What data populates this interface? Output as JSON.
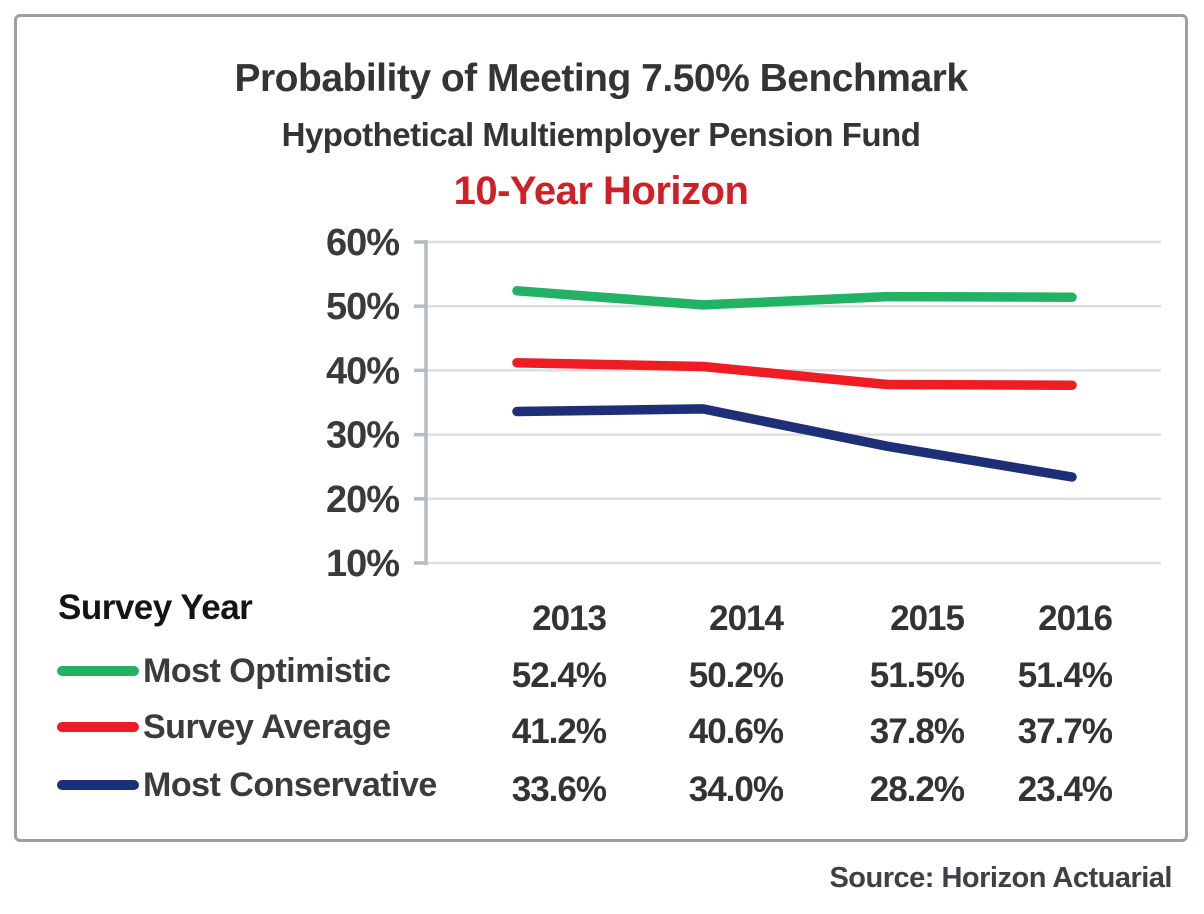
{
  "figure": {
    "title": "Probability of Meeting 7.50% Benchmark",
    "subtitle": "Hypothetical Multiemployer Pension Fund",
    "horizon_label": "10-Year Horizon",
    "source": "Source: Horizon Actuarial"
  },
  "table": {
    "header_label": "Survey Year",
    "years": [
      "2013",
      "2014",
      "2015",
      "2016"
    ],
    "rows": [
      {
        "label": "Most Optimistic",
        "values": [
          "52.4%",
          "50.2%",
          "51.5%",
          "51.4%"
        ]
      },
      {
        "label": "Survey Average",
        "values": [
          "41.2%",
          "40.6%",
          "37.8%",
          "37.7%"
        ]
      },
      {
        "label": "Most Conservative",
        "values": [
          "33.6%",
          "34.0%",
          "28.2%",
          "23.4%"
        ]
      }
    ]
  },
  "chart_data": {
    "type": "line",
    "title": "Probability of Meeting 7.50% Benchmark",
    "subtitle": "Hypothetical Multiemployer Pension Fund — 10-Year Horizon",
    "x": [
      2013,
      2014,
      2015,
      2016
    ],
    "xlabel": "Survey Year",
    "ylabel": "",
    "series": [
      {
        "name": "Most Optimistic",
        "color": "#22b264",
        "values": [
          52.4,
          50.2,
          51.5,
          51.4
        ]
      },
      {
        "name": "Survey Average",
        "color": "#ee1c23",
        "values": [
          41.2,
          40.6,
          37.8,
          37.7
        ]
      },
      {
        "name": "Most Conservative",
        "color": "#1d3077",
        "values": [
          33.6,
          34.0,
          28.2,
          23.4
        ]
      }
    ],
    "yticks": [
      60,
      50,
      40,
      30,
      20,
      10
    ],
    "ytick_suffix": "%",
    "ylim": [
      10,
      60
    ],
    "grid": true,
    "legend_position": "bottom-table"
  },
  "colors": {
    "grid_line": "#dcdfe1",
    "axis_line": "#b3bcbf",
    "tick_label": "#3a3a3c",
    "horizon_red": "#cf2027",
    "border": "#9aa0a4"
  }
}
